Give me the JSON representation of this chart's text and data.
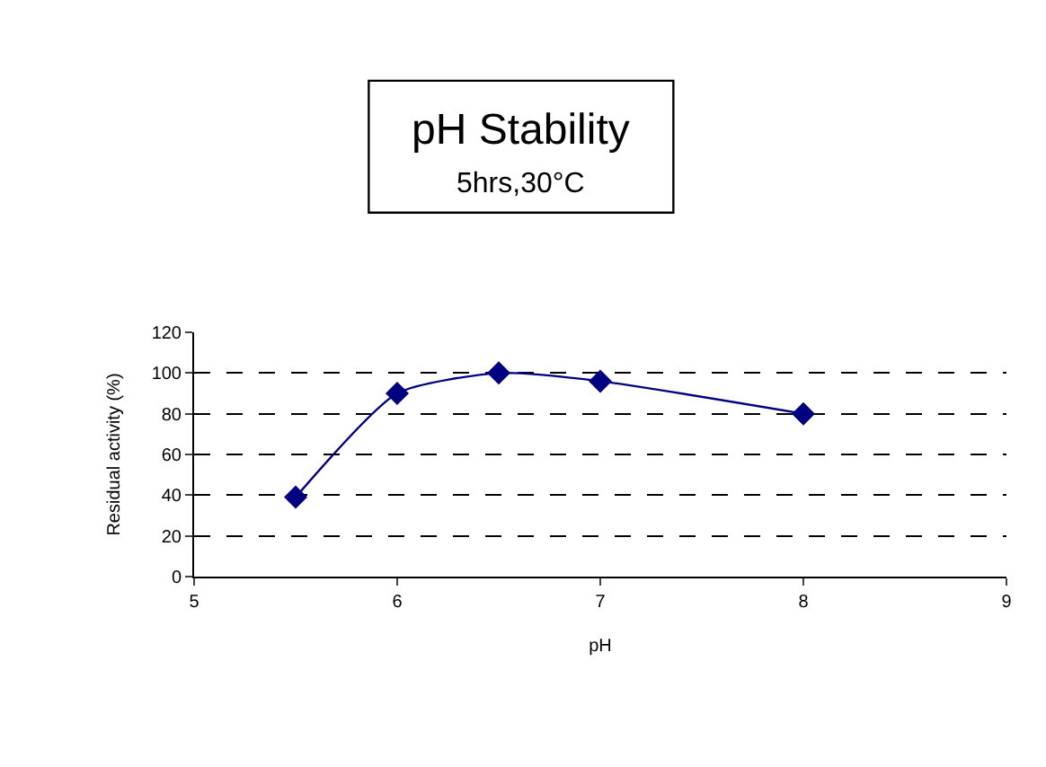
{
  "chart_data": {
    "type": "line",
    "title": "pH Stability",
    "subtitle": "5hrs,30°C",
    "xlabel": "pH",
    "ylabel": "Residual activity (%)",
    "x": [
      5.5,
      6,
      6.5,
      7,
      8
    ],
    "series": [
      {
        "color": "#000080",
        "values": [
          39,
          90,
          100,
          96,
          80
        ]
      }
    ],
    "xlim": [
      5,
      9
    ],
    "xticks": [
      5,
      6,
      7,
      8,
      9
    ],
    "ylim": [
      0,
      120
    ],
    "yticks": [
      0,
      20,
      40,
      60,
      80,
      100,
      120
    ],
    "grid": "y",
    "marker": "diamond",
    "line_style": "solid"
  }
}
